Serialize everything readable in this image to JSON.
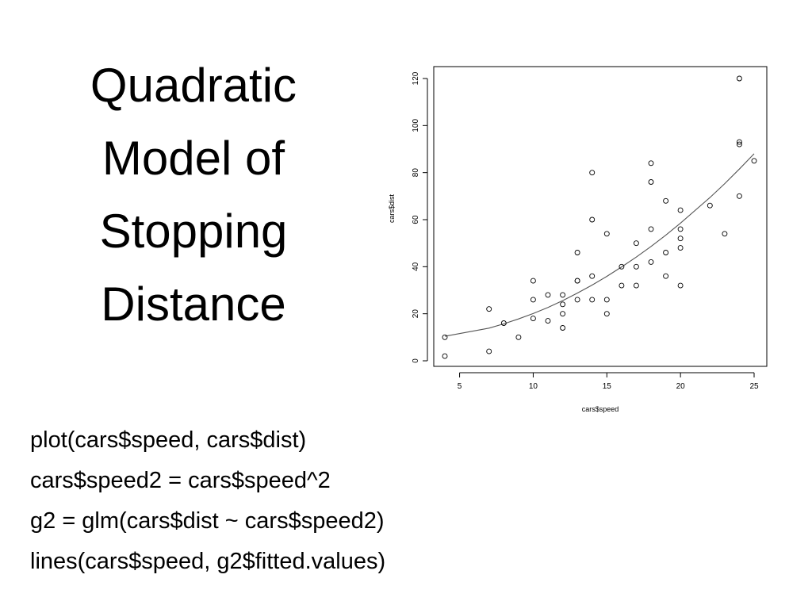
{
  "slide": {
    "title_lines": [
      "Quadratic",
      "Model of",
      "Stopping",
      "Distance"
    ],
    "code_lines": [
      "plot(cars$speed, cars$dist)",
      "cars$speed2 = cars$speed^2",
      "g2 = glm(cars$dist ~ cars$speed2)",
      "lines(cars$speed, g2$fitted.values)"
    ]
  },
  "chart_data": {
    "type": "scatter",
    "title": "",
    "xlabel": "cars$speed",
    "ylabel": "cars$dist",
    "xlim": [
      4,
      25
    ],
    "ylim": [
      0,
      120
    ],
    "xticks": [
      5,
      10,
      15,
      20,
      25
    ],
    "yticks": [
      0,
      20,
      40,
      60,
      80,
      100,
      120
    ],
    "grid": false,
    "legend": "none",
    "series": [
      {
        "kind": "points",
        "marker": "open-circle",
        "x": [
          4,
          4,
          7,
          7,
          8,
          9,
          10,
          10,
          10,
          11,
          11,
          12,
          12,
          12,
          12,
          13,
          13,
          13,
          13,
          14,
          14,
          14,
          14,
          15,
          15,
          15,
          16,
          16,
          17,
          17,
          17,
          18,
          18,
          18,
          18,
          19,
          19,
          19,
          20,
          20,
          20,
          20,
          20,
          22,
          23,
          24,
          24,
          24,
          24,
          25
        ],
        "y": [
          2,
          10,
          4,
          22,
          16,
          10,
          18,
          26,
          34,
          17,
          28,
          14,
          20,
          24,
          28,
          26,
          34,
          34,
          46,
          26,
          36,
          60,
          80,
          20,
          26,
          54,
          32,
          40,
          32,
          40,
          50,
          42,
          56,
          76,
          84,
          36,
          46,
          68,
          32,
          48,
          52,
          56,
          64,
          66,
          54,
          70,
          92,
          93,
          120,
          85
        ]
      },
      {
        "kind": "line",
        "description": "quadratic fit g2$fitted.values",
        "x": [
          4,
          7,
          8,
          9,
          10,
          11,
          12,
          13,
          14,
          15,
          16,
          17,
          18,
          19,
          20,
          22,
          23,
          24,
          25
        ],
        "y": [
          10.4,
          13.9,
          15.7,
          17.8,
          20.1,
          22.7,
          25.6,
          28.8,
          32.2,
          35.9,
          39.9,
          44.1,
          48.6,
          53.4,
          58.5,
          69.4,
          75.3,
          81.5,
          88.0
        ]
      }
    ],
    "colors": {
      "points": "#000000",
      "fit_line": "#555555",
      "axes": "#000000"
    }
  }
}
